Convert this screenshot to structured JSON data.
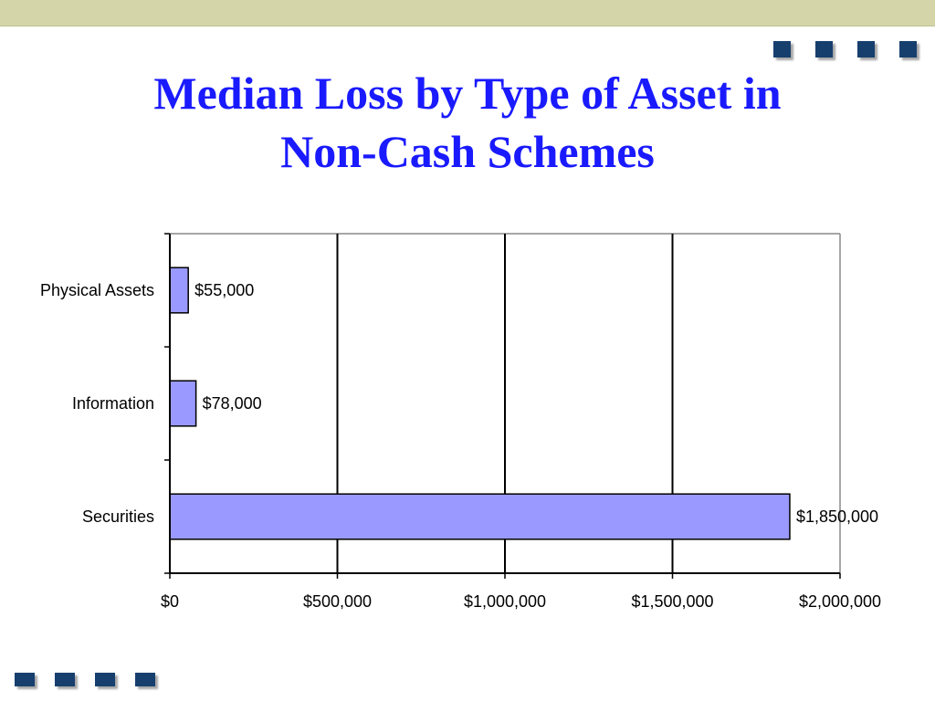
{
  "slide": {
    "title_line1": "Median Loss by Type of Asset in",
    "title_line2": "Non-Cash Schemes",
    "accent_color": "#173f6e",
    "top_bar_color": "#d4d6aa",
    "title_color": "#1a1aff",
    "decoration": {
      "top_squares": 4,
      "bottom_squares": 4
    }
  },
  "chart_data": {
    "type": "bar",
    "orientation": "horizontal",
    "title": "",
    "xlabel": "",
    "ylabel": "",
    "categories": [
      "Physical Assets",
      "Information",
      "Securities"
    ],
    "values": [
      55000,
      78000,
      1850000
    ],
    "data_labels": [
      "$55,000",
      "$78,000",
      "$1,850,000"
    ],
    "xlim": [
      0,
      2000000
    ],
    "xticks": [
      0,
      500000,
      1000000,
      1500000,
      2000000
    ],
    "xtick_labels": [
      "$0",
      "$500,000",
      "$1,000,000",
      "$1,500,000",
      "$2,000,000"
    ],
    "grid": true,
    "legend": "none",
    "bar_color": "#9999ff"
  }
}
